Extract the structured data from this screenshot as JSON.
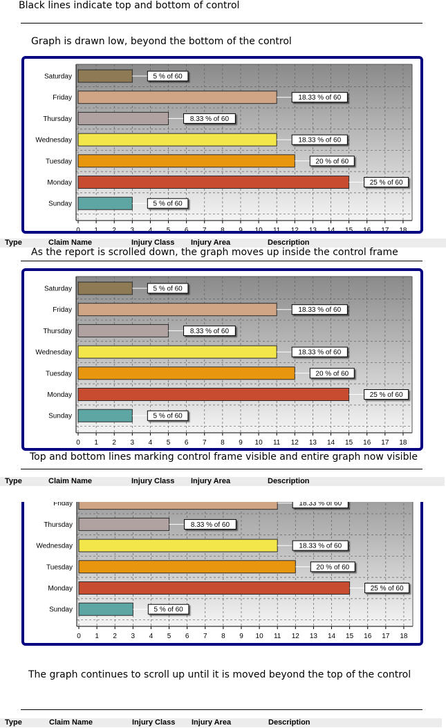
{
  "notes": {
    "top": "Black lines indicate top and bottom of control",
    "low": "Graph is drawn low, beyond the bottom of the control",
    "moves_up": "As the report is scrolled down, the graph moves up inside the control frame",
    "visible": "Top and bottom lines marking control frame visible and entire graph now visible",
    "continues": "The graph continues to scroll up until it is moved beyond the top of the control"
  },
  "table_header": {
    "type": "Type",
    "claim_name": "Claim Name",
    "injury_class": "Injury Class",
    "injury_area": "Injury Area",
    "description": "Description"
  },
  "chart_data": {
    "type": "bar",
    "orientation": "horizontal",
    "categories": [
      "Saturday",
      "Friday",
      "Thursday",
      "Wednesday",
      "Tuesday",
      "Monday",
      "Sunday"
    ],
    "values": [
      3,
      11,
      5,
      11,
      12,
      15,
      3
    ],
    "data_labels": [
      "5 % of 60",
      "18.33 % of 60",
      "8.33 % of 60",
      "18.33 % of 60",
      "20 % of 60",
      "25 % of 60",
      "5 % of 60"
    ],
    "colors": [
      "#8f7a56",
      "#cfa586",
      "#b1a2a2",
      "#f3e64a",
      "#e9960f",
      "#c84c30",
      "#5ea6a4"
    ],
    "xticks": [
      0,
      1,
      2,
      3,
      4,
      5,
      6,
      7,
      8,
      9,
      10,
      11,
      12,
      13,
      14,
      15,
      16,
      17,
      18
    ],
    "xlim": [
      0,
      18.5
    ],
    "grid": true,
    "legend": "none"
  },
  "colors": {
    "frame_border": "#000080",
    "plot_gradient_top": "#8a8a8a",
    "plot_gradient_bottom": "#f4f4f4"
  }
}
